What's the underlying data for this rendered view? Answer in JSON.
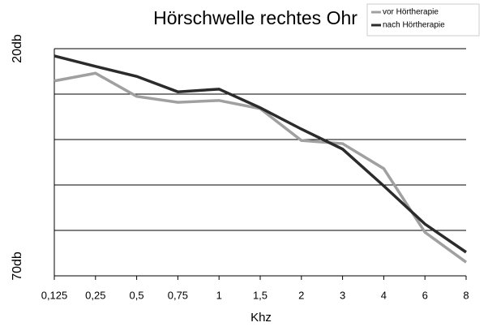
{
  "chart_data": {
    "type": "line",
    "title": "Hörschwelle rechtes Ohr",
    "xlabel": "Khz",
    "categories": [
      "0,125",
      "0,25",
      "0,5",
      "0,75",
      "1",
      "1,5",
      "2",
      "3",
      "4",
      "6",
      "8"
    ],
    "series": [
      {
        "name": "vor Hörtherapie",
        "color": "#a0a0a0",
        "values": [
          27.1,
          25.4,
          30.5,
          31.8,
          31.4,
          33.2,
          40.2,
          40.9,
          46.4,
          60.4,
          67.0
        ]
      },
      {
        "name": "nach Hörtherapie",
        "color": "#2b2b2b",
        "values": [
          21.6,
          23.9,
          26.1,
          29.5,
          28.9,
          33.0,
          37.7,
          42.1,
          50.2,
          58.6,
          64.8
        ]
      }
    ],
    "ylim": [
      70,
      20
    ],
    "yticks": [
      {
        "value": 20,
        "label": "20db"
      },
      {
        "value": 70,
        "label": "70db"
      }
    ],
    "ygrid": [
      30,
      40,
      50,
      60
    ],
    "grid": true,
    "legend": "top-right"
  }
}
